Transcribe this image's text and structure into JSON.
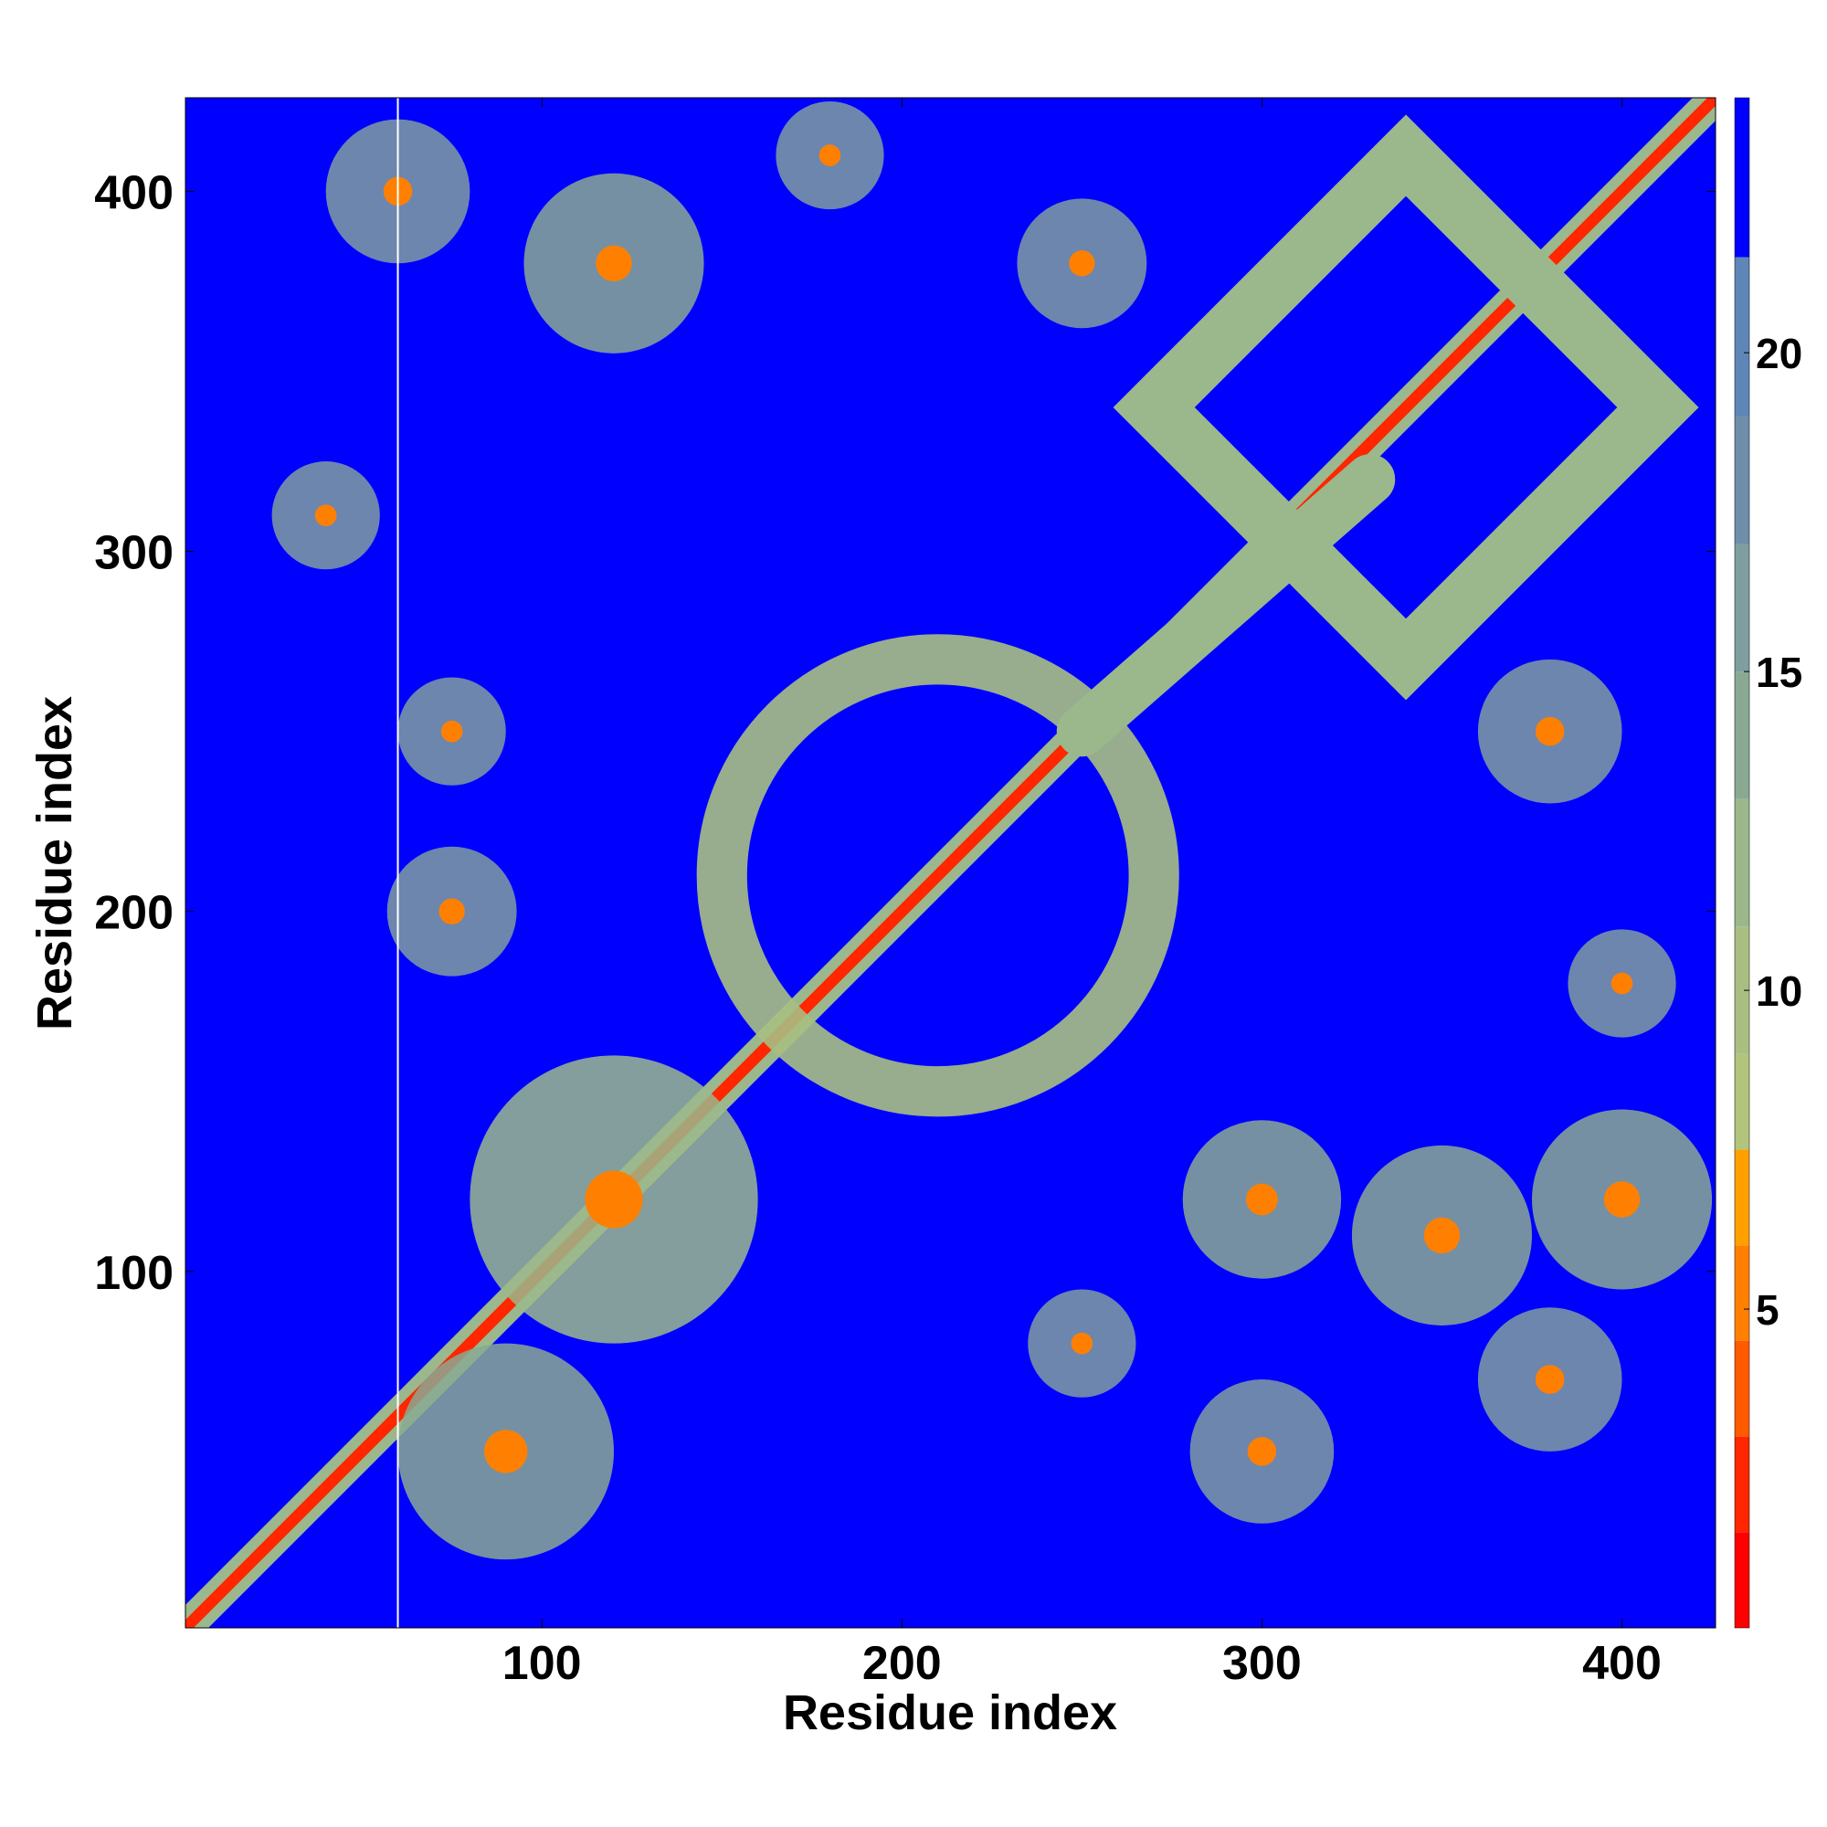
{
  "chart_data": {
    "type": "heatmap",
    "title": "",
    "xlabel": "Residue index",
    "ylabel": "Residue index",
    "xlim": [
      1,
      426
    ],
    "ylim": [
      1,
      426
    ],
    "xticks": [
      100,
      200,
      300,
      400
    ],
    "yticks": [
      100,
      200,
      300,
      400
    ],
    "colorbar": {
      "range": [
        0,
        24
      ],
      "ticks": [
        5,
        10,
        15,
        20
      ],
      "colors": [
        "#ff0000",
        "#ff2600",
        "#ff5a00",
        "#ff8000",
        "#ffa000",
        "#b3c47c",
        "#a9bf82",
        "#9bb88c",
        "#8aa993",
        "#7f9ea0",
        "#6f8eaa",
        "#5f86b8",
        "#0000ff"
      ],
      "boundaries": [
        0,
        1.5,
        3,
        4.5,
        6,
        7.5,
        9,
        11,
        13,
        15,
        17,
        19,
        21.5,
        24
      ]
    },
    "blank_column_x": 60,
    "features": [
      {
        "kind": "diagonal_band",
        "from": 1,
        "to": 426,
        "value": 2
      },
      {
        "kind": "ring_cluster",
        "center": [
          210,
          210
        ],
        "radius": 60,
        "value": 10
      },
      {
        "kind": "arc",
        "from": [
          250,
          250
        ],
        "to": [
          330,
          320
        ],
        "value": 12
      },
      {
        "kind": "diamond",
        "center": [
          340,
          340
        ],
        "size": 70,
        "value": 12
      },
      {
        "kind": "blob",
        "center": [
          120,
          120
        ],
        "radius": 40,
        "value": 12
      },
      {
        "kind": "blob",
        "center": [
          90,
          50
        ],
        "radius": 30,
        "value": 13
      },
      {
        "kind": "blob",
        "center": [
          400,
          120
        ],
        "radius": 25,
        "value": 14
      },
      {
        "kind": "blob",
        "center": [
          350,
          110
        ],
        "radius": 25,
        "value": 14
      },
      {
        "kind": "blob",
        "center": [
          380,
          70
        ],
        "radius": 20,
        "value": 15
      },
      {
        "kind": "blob",
        "center": [
          120,
          380
        ],
        "radius": 25,
        "value": 14
      },
      {
        "kind": "blob",
        "center": [
          60,
          400
        ],
        "radius": 20,
        "value": 15
      },
      {
        "kind": "blob",
        "center": [
          300,
          120
        ],
        "radius": 22,
        "value": 14
      },
      {
        "kind": "blob",
        "center": [
          300,
          50
        ],
        "radius": 20,
        "value": 15
      },
      {
        "kind": "blob",
        "center": [
          40,
          310
        ],
        "radius": 15,
        "value": 15
      },
      {
        "kind": "blob",
        "center": [
          380,
          250
        ],
        "radius": 20,
        "value": 16
      },
      {
        "kind": "blob",
        "center": [
          250,
          380
        ],
        "radius": 18,
        "value": 16
      },
      {
        "kind": "blob",
        "center": [
          180,
          410
        ],
        "radius": 15,
        "value": 16
      },
      {
        "kind": "blob",
        "center": [
          250,
          80
        ],
        "radius": 15,
        "value": 15
      },
      {
        "kind": "blob",
        "center": [
          400,
          180
        ],
        "radius": 15,
        "value": 16
      },
      {
        "kind": "blob",
        "center": [
          75,
          250
        ],
        "radius": 15,
        "value": 16
      },
      {
        "kind": "blob",
        "center": [
          75,
          200
        ],
        "radius": 18,
        "value": 16
      }
    ]
  }
}
